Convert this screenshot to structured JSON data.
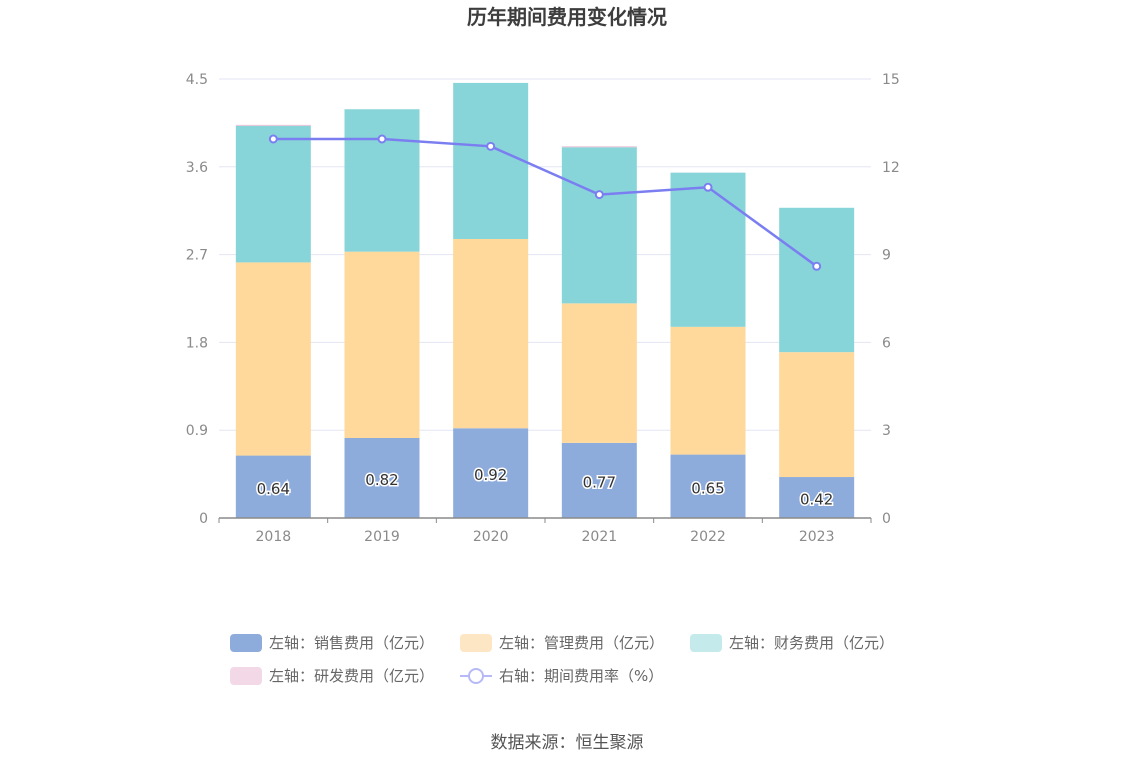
{
  "chart_data": {
    "type": "bar",
    "stacked": true,
    "title": "历年期间费用变化情况",
    "categories": [
      "2018",
      "2019",
      "2020",
      "2021",
      "2022",
      "2023"
    ],
    "series": [
      {
        "name": "左轴：销售费用（亿元）",
        "axis": "left",
        "type": "bar",
        "color": "#8eacdb",
        "values": [
          0.64,
          0.82,
          0.92,
          0.77,
          0.65,
          0.42
        ],
        "labels_shown": true
      },
      {
        "name": "左轴：管理费用（亿元）",
        "axis": "left",
        "type": "bar",
        "color": "#fed99b",
        "values": [
          1.98,
          1.91,
          1.94,
          1.43,
          1.31,
          1.28
        ]
      },
      {
        "name": "左轴：财务费用（亿元）",
        "axis": "left",
        "type": "bar",
        "color": "#88d5d9",
        "values": [
          1.4,
          1.46,
          1.6,
          1.6,
          1.58,
          1.48
        ]
      },
      {
        "name": "左轴：研发费用（亿元）",
        "axis": "left",
        "type": "bar",
        "color": "#e8bfd6",
        "values": [
          0.01,
          0.0,
          0.0,
          0.01,
          0.0,
          0.0
        ]
      },
      {
        "name": "右轴：期间费用率（%）",
        "axis": "right",
        "type": "line",
        "color": "#7b7ef0",
        "values": [
          12.95,
          12.95,
          12.7,
          11.05,
          11.3,
          8.6
        ]
      }
    ],
    "left_axis": {
      "min": 0,
      "max": 4.5,
      "ticks": [
        "0",
        "0.9",
        "1.8",
        "2.7",
        "3.6",
        "4.5"
      ]
    },
    "right_axis": {
      "min": 0,
      "max": 15,
      "ticks": [
        "0",
        "3",
        "6",
        "9",
        "12",
        "15"
      ]
    },
    "grid": true,
    "legend_position": "bottom",
    "source": "数据来源：恒生聚源"
  }
}
